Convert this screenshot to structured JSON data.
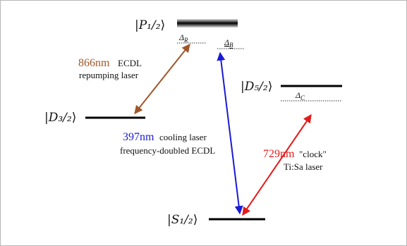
{
  "levels": {
    "p12": {
      "label": "P₁/₂",
      "kind": "broad"
    },
    "d32": {
      "label": "D₃/₂"
    },
    "d52": {
      "label": "D₅/₂"
    },
    "s12": {
      "label": "S₁/₂"
    }
  },
  "detunings": {
    "delta_r": "Δ_R",
    "delta_b": "Δ_B",
    "delta_c": "Δ_C"
  },
  "lasers": {
    "repump": {
      "wavelength": "866nm",
      "line1": "ECDL",
      "line2": "repumping laser",
      "color": "#a0562a"
    },
    "cooling": {
      "wavelength": "397nm",
      "line1": "cooling laser",
      "line2": "frequency-doubled ECDL",
      "color": "#1a1ad6"
    },
    "clock": {
      "wavelength": "729nm",
      "line1": "\"clock\"",
      "line2": "Ti:Sa laser",
      "color": "#e31b1b"
    }
  },
  "colors": {
    "level_line": "#000000",
    "frame_border": "#b8b8b8"
  }
}
